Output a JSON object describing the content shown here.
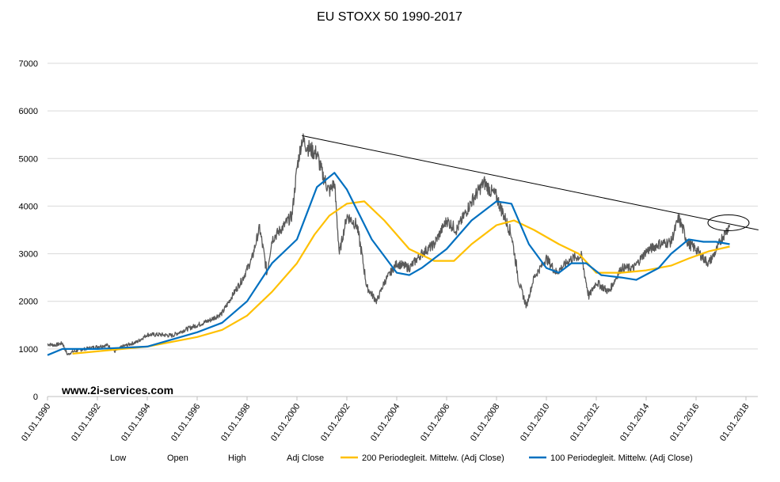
{
  "chart_data": {
    "type": "line",
    "title": "EU STOXX 50 1990-2017",
    "watermark": "www.2i-services.com",
    "xlabel": "",
    "ylabel": "",
    "xlim": [
      1990,
      2018
    ],
    "ylim": [
      0,
      7000
    ],
    "y_ticks": [
      "0",
      "1000",
      "2000",
      "3000",
      "4000",
      "5000",
      "6000",
      "7000"
    ],
    "x_ticks": [
      "01.01.1990",
      "01.01.1992",
      "01.01.1994",
      "01.01.1996",
      "01.01.1998",
      "01.01.2000",
      "01.01.2002",
      "01.01.2004",
      "01.01.2006",
      "01.01.2008",
      "01.01.2010",
      "01.01.2012",
      "01.01.2014",
      "01.01.2016",
      "01.01.2018"
    ],
    "grid": true,
    "legend_position": "bottom",
    "legend": [
      "Low",
      "Open",
      "High",
      "Adj Close",
      "200 Periodegleit. Mittelw. (Adj Close)",
      "100 Periodegleit. Mittelw. (Adj Close)"
    ],
    "series": [
      {
        "name": "Adj Close",
        "color": "#595959",
        "points": [
          [
            1990,
            1100
          ],
          [
            1990.3,
            1080
          ],
          [
            1990.6,
            1120
          ],
          [
            1990.8,
            880
          ],
          [
            1991,
            940
          ],
          [
            1991.5,
            1000
          ],
          [
            1992,
            1050
          ],
          [
            1992.4,
            1080
          ],
          [
            1992.7,
            950
          ],
          [
            1993,
            1050
          ],
          [
            1993.6,
            1150
          ],
          [
            1994,
            1300
          ],
          [
            1994.5,
            1300
          ],
          [
            1995,
            1280
          ],
          [
            1995.5,
            1400
          ],
          [
            1996,
            1500
          ],
          [
            1996.5,
            1600
          ],
          [
            1997,
            1750
          ],
          [
            1997.5,
            2200
          ],
          [
            1997.8,
            2450
          ],
          [
            1998.2,
            2900
          ],
          [
            1998.5,
            3550
          ],
          [
            1998.8,
            2600
          ],
          [
            1999,
            3300
          ],
          [
            1999.5,
            3600
          ],
          [
            1999.8,
            3800
          ],
          [
            2000,
            4800
          ],
          [
            2000.2,
            5400
          ],
          [
            2000.5,
            5200
          ],
          [
            2000.8,
            5100
          ],
          [
            2001,
            4700
          ],
          [
            2001.3,
            4300
          ],
          [
            2001.5,
            4500
          ],
          [
            2001.7,
            3000
          ],
          [
            2002,
            3800
          ],
          [
            2002.4,
            3600
          ],
          [
            2002.6,
            3000
          ],
          [
            2002.8,
            2300
          ],
          [
            2003.2,
            2000
          ],
          [
            2003.5,
            2400
          ],
          [
            2004,
            2800
          ],
          [
            2004.5,
            2700
          ],
          [
            2005,
            3000
          ],
          [
            2005.5,
            3200
          ],
          [
            2006,
            3700
          ],
          [
            2006.4,
            3500
          ],
          [
            2006.7,
            3800
          ],
          [
            2007,
            4100
          ],
          [
            2007.5,
            4500
          ],
          [
            2007.8,
            4300
          ],
          [
            2008,
            4200
          ],
          [
            2008.3,
            3800
          ],
          [
            2008.6,
            3400
          ],
          [
            2008.9,
            2400
          ],
          [
            2009.2,
            1900
          ],
          [
            2009.5,
            2500
          ],
          [
            2010,
            2900
          ],
          [
            2010.4,
            2600
          ],
          [
            2011,
            2900
          ],
          [
            2011.4,
            2950
          ],
          [
            2011.7,
            2100
          ],
          [
            2012,
            2400
          ],
          [
            2012.5,
            2200
          ],
          [
            2013,
            2700
          ],
          [
            2013.5,
            2700
          ],
          [
            2014,
            3050
          ],
          [
            2014.5,
            3200
          ],
          [
            2015,
            3250
          ],
          [
            2015.3,
            3750
          ],
          [
            2015.7,
            3200
          ],
          [
            2016,
            3100
          ],
          [
            2016.3,
            2900
          ],
          [
            2016.5,
            2800
          ],
          [
            2016.8,
            3050
          ],
          [
            2017,
            3300
          ],
          [
            2017.35,
            3600
          ]
        ]
      },
      {
        "name": "200 Periodegleit. Mittelw. (Adj Close)",
        "color": "#FFC000",
        "points": [
          [
            1991,
            900
          ],
          [
            1992,
            950
          ],
          [
            1994,
            1050
          ],
          [
            1996,
            1250
          ],
          [
            1997,
            1400
          ],
          [
            1998,
            1700
          ],
          [
            1999,
            2200
          ],
          [
            2000,
            2800
          ],
          [
            2000.7,
            3400
          ],
          [
            2001.3,
            3800
          ],
          [
            2002,
            4050
          ],
          [
            2002.7,
            4100
          ],
          [
            2003.5,
            3700
          ],
          [
            2004.5,
            3100
          ],
          [
            2005.5,
            2850
          ],
          [
            2006.3,
            2850
          ],
          [
            2007,
            3200
          ],
          [
            2008,
            3600
          ],
          [
            2008.7,
            3700
          ],
          [
            2009.5,
            3500
          ],
          [
            2010.5,
            3200
          ],
          [
            2011.3,
            3000
          ],
          [
            2012,
            2600
          ],
          [
            2013,
            2600
          ],
          [
            2014,
            2650
          ],
          [
            2015,
            2750
          ],
          [
            2015.7,
            2900
          ],
          [
            2016.5,
            3050
          ],
          [
            2017.35,
            3150
          ]
        ]
      },
      {
        "name": "100 Periodegleit. Mittelw. (Adj Close)",
        "color": "#0070C0",
        "points": [
          [
            1990,
            870
          ],
          [
            1990.6,
            1000
          ],
          [
            1992,
            1000
          ],
          [
            1994,
            1050
          ],
          [
            1996,
            1350
          ],
          [
            1997,
            1550
          ],
          [
            1998,
            2000
          ],
          [
            1999,
            2800
          ],
          [
            2000,
            3300
          ],
          [
            2000.8,
            4400
          ],
          [
            2001.5,
            4700
          ],
          [
            2002,
            4350
          ],
          [
            2003,
            3300
          ],
          [
            2004,
            2600
          ],
          [
            2004.5,
            2550
          ],
          [
            2005,
            2700
          ],
          [
            2006,
            3100
          ],
          [
            2007,
            3700
          ],
          [
            2008,
            4100
          ],
          [
            2008.6,
            4050
          ],
          [
            2009.3,
            3200
          ],
          [
            2010,
            2700
          ],
          [
            2010.5,
            2600
          ],
          [
            2011,
            2800
          ],
          [
            2011.6,
            2800
          ],
          [
            2012.2,
            2550
          ],
          [
            2013,
            2500
          ],
          [
            2013.6,
            2450
          ],
          [
            2014.5,
            2700
          ],
          [
            2015,
            3000
          ],
          [
            2015.7,
            3300
          ],
          [
            2016.3,
            3250
          ],
          [
            2016.8,
            3250
          ],
          [
            2017.35,
            3200
          ]
        ]
      }
    ],
    "annotations": [
      {
        "type": "trendline",
        "from": [
          2000.2,
          5480
        ],
        "to": [
          2018.5,
          3500
        ],
        "color": "#000000"
      },
      {
        "type": "ellipse",
        "center": [
          2017.3,
          3650
        ],
        "color": "#000000"
      }
    ]
  }
}
